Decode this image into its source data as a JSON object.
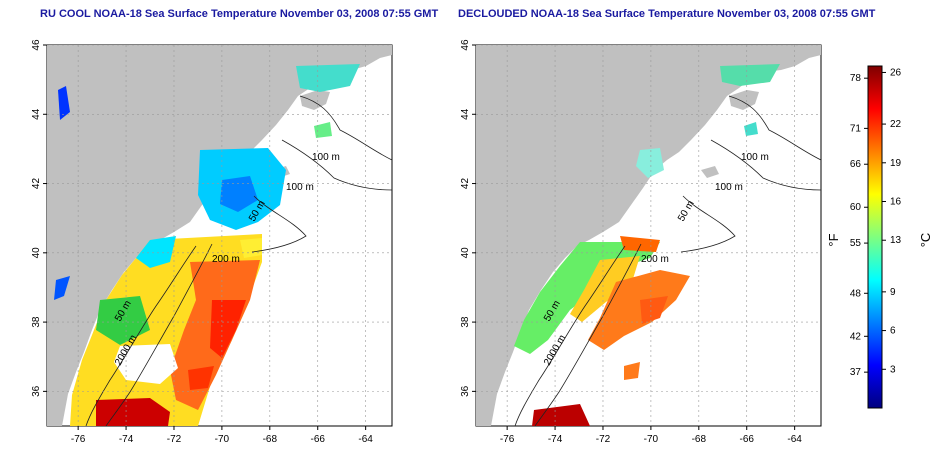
{
  "panels": [
    {
      "title": "RU COOL NOAA-18 Sea Surface Temperature November 03, 2008 07:55 GMT",
      "contour_labels": [
        "100 m",
        "100 m",
        "50 m",
        "200 m",
        "50 m",
        "2000 m"
      ]
    },
    {
      "title": "DECLOUDED NOAA-18 Sea Surface Temperature November 03, 2008 07:55 GMT",
      "contour_labels": [
        "100 m",
        "100 m",
        "50 m",
        "200 m",
        "50 m",
        "2000 m"
      ]
    }
  ],
  "axes": {
    "lon_ticks": [
      "-76",
      "-74",
      "-72",
      "-70",
      "-68",
      "-66",
      "-64"
    ],
    "lat_ticks": [
      "36",
      "38",
      "40",
      "42",
      "44",
      "46"
    ],
    "lon_range": [
      -77.3,
      -62.9
    ],
    "lat_range": [
      35.0,
      46.0
    ]
  },
  "colorbar": {
    "unit_f": "°F",
    "unit_c": "°C",
    "f_ticks": [
      "78",
      "71",
      "66",
      "60",
      "55",
      "48",
      "42",
      "37"
    ],
    "f_values": [
      78,
      71,
      66,
      60,
      55,
      48,
      42,
      37
    ],
    "c_ticks": [
      "26",
      "22",
      "19",
      "16",
      "13",
      "9",
      "6",
      "3"
    ],
    "c_values": [
      26,
      22,
      19,
      16,
      13,
      9,
      6,
      3
    ],
    "c_range": [
      0,
      26.5
    ],
    "colors": [
      "#00007f",
      "#0000ff",
      "#007fff",
      "#00ffff",
      "#7fff7f",
      "#ffff00",
      "#ff7f00",
      "#ff0000",
      "#7f0000"
    ]
  },
  "colors": {
    "land": "#c0c0c0",
    "contour": "#222222",
    "title": "#1a1aa0"
  }
}
